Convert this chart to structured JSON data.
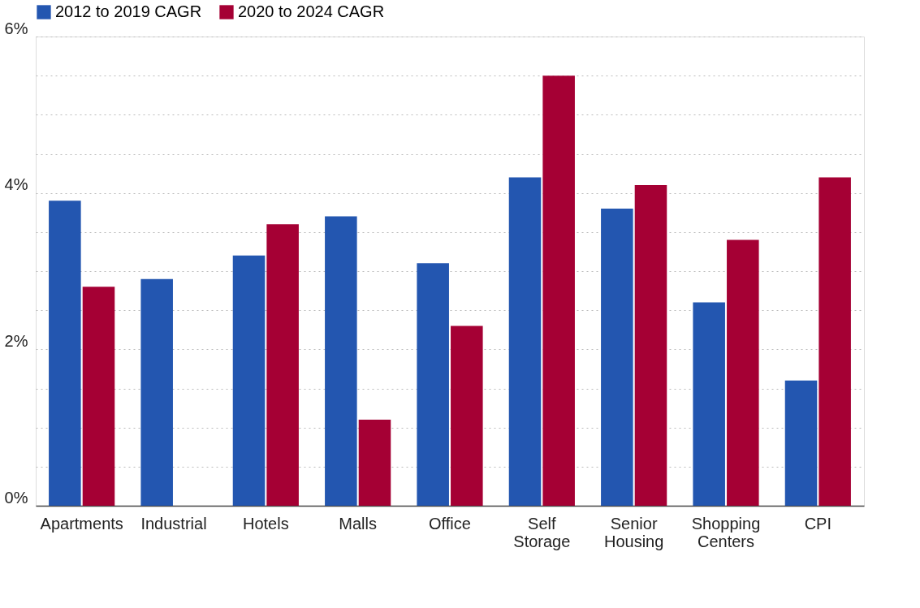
{
  "chart_data": {
    "type": "bar",
    "categories": [
      "Apartments",
      "Industrial",
      "Hotels",
      "Malls",
      "Office",
      "Self Storage",
      "Senior Housing",
      "Shopping Centers",
      "CPI"
    ],
    "series": [
      {
        "name": "2012 to 2019 CAGR",
        "color": "#2356b0",
        "values": [
          3.9,
          2.9,
          3.2,
          3.7,
          3.1,
          4.2,
          3.8,
          2.6,
          1.6
        ]
      },
      {
        "name": "2020 to 2024 CAGR",
        "color": "#a50034",
        "values": [
          2.8,
          null,
          3.6,
          1.1,
          2.3,
          5.5,
          4.1,
          3.4,
          4.2
        ]
      }
    ],
    "ylim": [
      0,
      6
    ],
    "yticks": [
      {
        "value": 0,
        "label": "0%"
      },
      {
        "value": 0.5,
        "label": null
      },
      {
        "value": 1,
        "label": null
      },
      {
        "value": 1.5,
        "label": null
      },
      {
        "value": 2,
        "label": "2%"
      },
      {
        "value": 2.5,
        "label": null
      },
      {
        "value": 3,
        "label": null
      },
      {
        "value": 3.5,
        "label": null
      },
      {
        "value": 4,
        "label": "4%"
      },
      {
        "value": 4.5,
        "label": null
      },
      {
        "value": 5,
        "label": null
      },
      {
        "value": 5.5,
        "label": null
      },
      {
        "value": 6,
        "label": "6%"
      }
    ],
    "grid": "y",
    "legend": "top left"
  }
}
